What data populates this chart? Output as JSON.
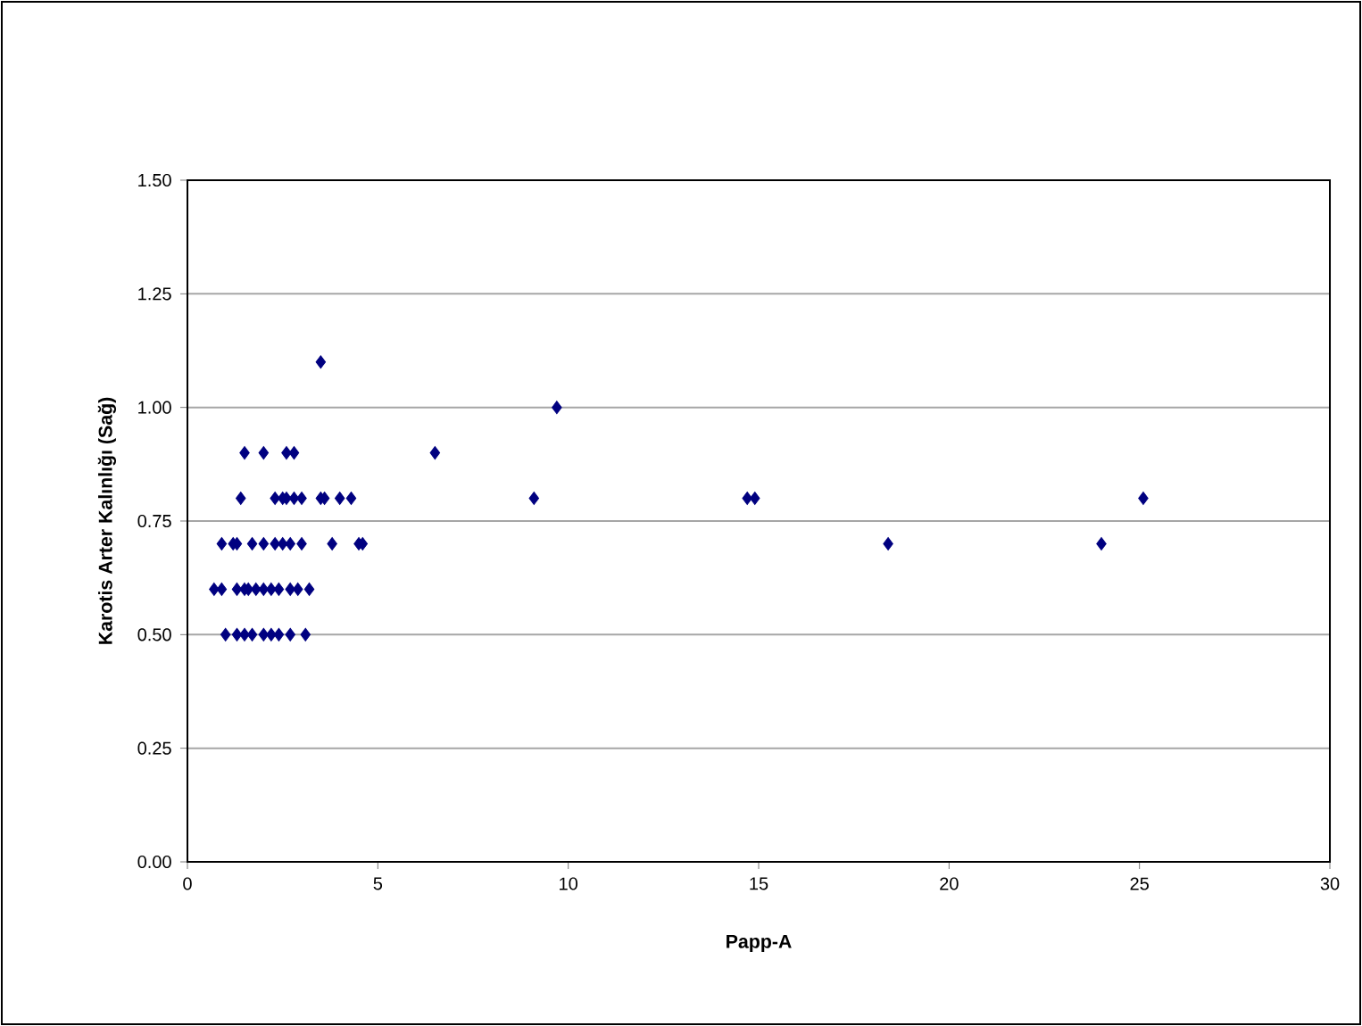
{
  "chart_data": {
    "type": "scatter",
    "xlabel": "Papp-A",
    "ylabel": "Karotis Arter Kalınlığı (Sağ)",
    "x": [
      3.5,
      1.5,
      2.0,
      2.6,
      2.8,
      6.5,
      1.4,
      2.3,
      2.5,
      2.6,
      2.8,
      3.0,
      3.5,
      3.6,
      4.0,
      4.3,
      9.1,
      9.7,
      14.7,
      14.9,
      25.1,
      0.9,
      1.2,
      1.3,
      1.7,
      2.0,
      2.3,
      2.5,
      2.7,
      3.0,
      3.8,
      4.5,
      4.6,
      18.4,
      24.0,
      0.7,
      0.9,
      1.3,
      1.5,
      1.6,
      1.8,
      2.0,
      2.2,
      2.4,
      2.7,
      2.9,
      3.2,
      1.0,
      1.3,
      1.5,
      1.7,
      2.0,
      2.2,
      2.4,
      2.7,
      3.1
    ],
    "values": [
      1.1,
      0.9,
      0.9,
      0.9,
      0.9,
      0.9,
      0.8,
      0.8,
      0.8,
      0.8,
      0.8,
      0.8,
      0.8,
      0.8,
      0.8,
      0.8,
      0.8,
      1.0,
      0.8,
      0.8,
      0.8,
      0.7,
      0.7,
      0.7,
      0.7,
      0.7,
      0.7,
      0.7,
      0.7,
      0.7,
      0.7,
      0.7,
      0.7,
      0.7,
      0.7,
      0.6,
      0.6,
      0.6,
      0.6,
      0.6,
      0.6,
      0.6,
      0.6,
      0.6,
      0.6,
      0.6,
      0.6,
      0.5,
      0.5,
      0.5,
      0.5,
      0.5,
      0.5,
      0.5,
      0.5,
      0.5
    ],
    "color": "#000080",
    "marker": "diamond",
    "xlim": [
      0,
      30
    ],
    "xticks": [
      0,
      5,
      10,
      15,
      20,
      25,
      30
    ],
    "ylim": [
      0,
      1.5
    ],
    "yticks": [
      {
        "value": 0,
        "label": "0.00"
      },
      {
        "value": 0.25,
        "label": "0.25"
      },
      {
        "value": 0.5,
        "label": "0.50"
      },
      {
        "value": 0.75,
        "label": "0.75"
      },
      {
        "value": 1.0,
        "label": "1.00"
      },
      {
        "value": 1.25,
        "label": "1.25"
      },
      {
        "value": 1.5,
        "label": "1.50"
      }
    ],
    "grid": "y"
  }
}
